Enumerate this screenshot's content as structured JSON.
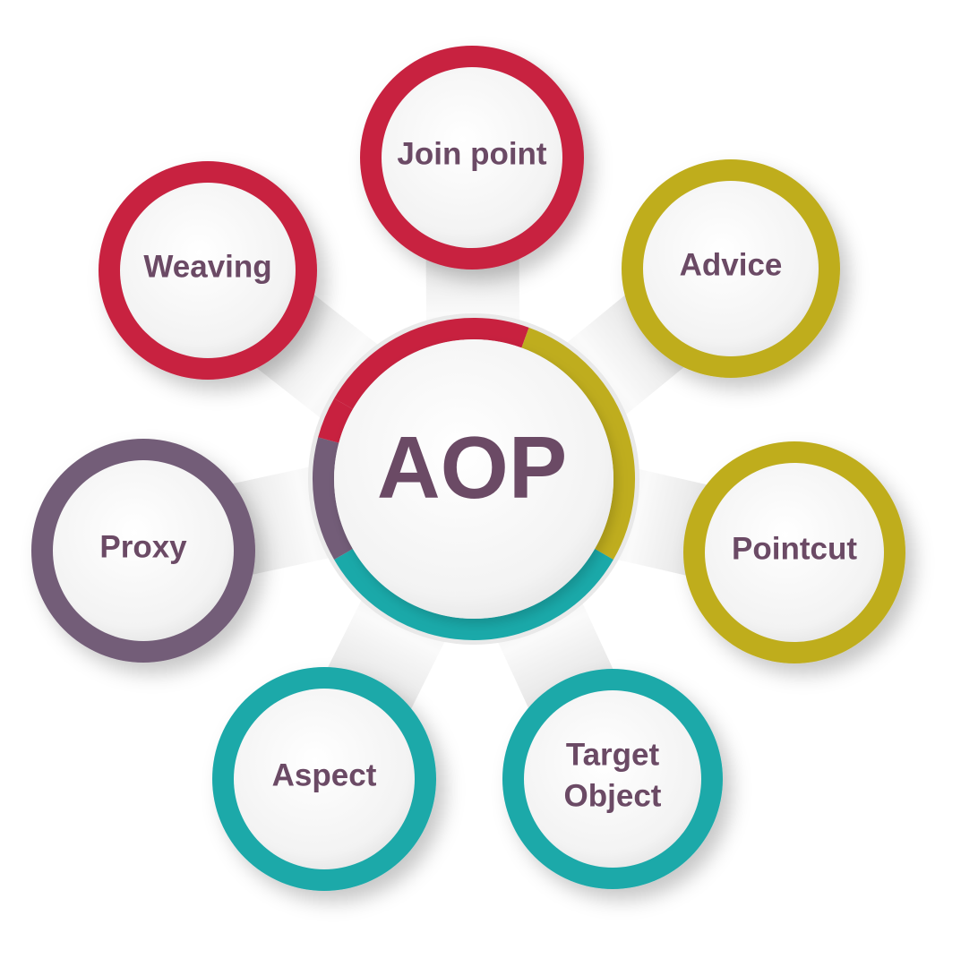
{
  "center": {
    "label": "AOP",
    "text_color": "#6b4a65"
  },
  "text_color": "#6b4a65",
  "colors": {
    "red": "#c8213f",
    "gold": "#bfad1e",
    "purple": "#735d78",
    "teal": "#1aa9a9"
  },
  "nodes": [
    {
      "id": "join-point",
      "lines": [
        "Join point"
      ],
      "color_key": "red"
    },
    {
      "id": "advice",
      "lines": [
        "Advice"
      ],
      "color_key": "gold"
    },
    {
      "id": "pointcut",
      "lines": [
        "Pointcut"
      ],
      "color_key": "gold"
    },
    {
      "id": "target-object",
      "lines": [
        "Target",
        "Object"
      ],
      "color_key": "teal"
    },
    {
      "id": "aspect",
      "lines": [
        "Aspect"
      ],
      "color_key": "teal"
    },
    {
      "id": "proxy",
      "lines": [
        "Proxy"
      ],
      "color_key": "purple"
    },
    {
      "id": "weaving",
      "lines": [
        "Weaving"
      ],
      "color_key": "red"
    }
  ]
}
